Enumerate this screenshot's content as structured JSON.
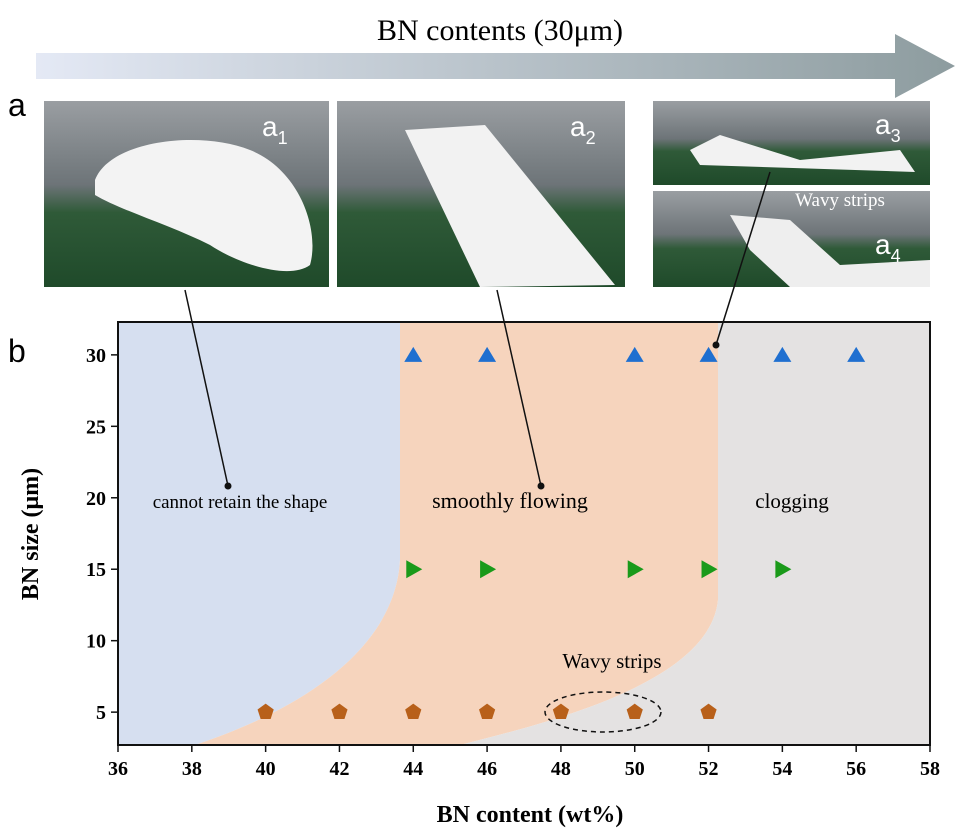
{
  "header": {
    "arrow_text": "BN contents (30μm)"
  },
  "panel_labels": [
    "a",
    "b"
  ],
  "photos": [
    {
      "letter": "a",
      "index": "1"
    },
    {
      "letter": "a",
      "index": "2"
    },
    {
      "letter": "a",
      "index": "3"
    },
    {
      "letter": "a",
      "index": "4"
    }
  ],
  "photo_annotation": "Wavy strips",
  "chart_data": {
    "type": "scatter",
    "xlabel": "BN content (wt%)",
    "ylabel": "BN size (μm)",
    "xlim": [
      36,
      58
    ],
    "ylim": [
      2.7,
      32.3
    ],
    "xticks": [
      36,
      38,
      40,
      42,
      44,
      46,
      48,
      50,
      52,
      54,
      56,
      58
    ],
    "yticks": [
      5,
      10,
      15,
      20,
      25,
      30
    ],
    "series": [
      {
        "marker": "triangle-up",
        "color": "#1f6fd0",
        "x": [
          44,
          46,
          50,
          52,
          54,
          56
        ],
        "values": [
          30,
          30,
          30,
          30,
          30,
          30
        ]
      },
      {
        "marker": "triangle-right",
        "color": "#1a9a1a",
        "x": [
          44,
          46,
          50,
          52,
          54
        ],
        "values": [
          15,
          15,
          15,
          15,
          15
        ]
      },
      {
        "marker": "pentagon",
        "color": "#b8601a",
        "x": [
          40,
          42,
          44,
          46,
          48,
          50,
          52
        ],
        "values": [
          5,
          5,
          5,
          5,
          5,
          5,
          5
        ]
      }
    ],
    "annotations": [
      "cannot retain the shape",
      "smoothly flowing",
      "clogging",
      "Wavy strips"
    ]
  }
}
